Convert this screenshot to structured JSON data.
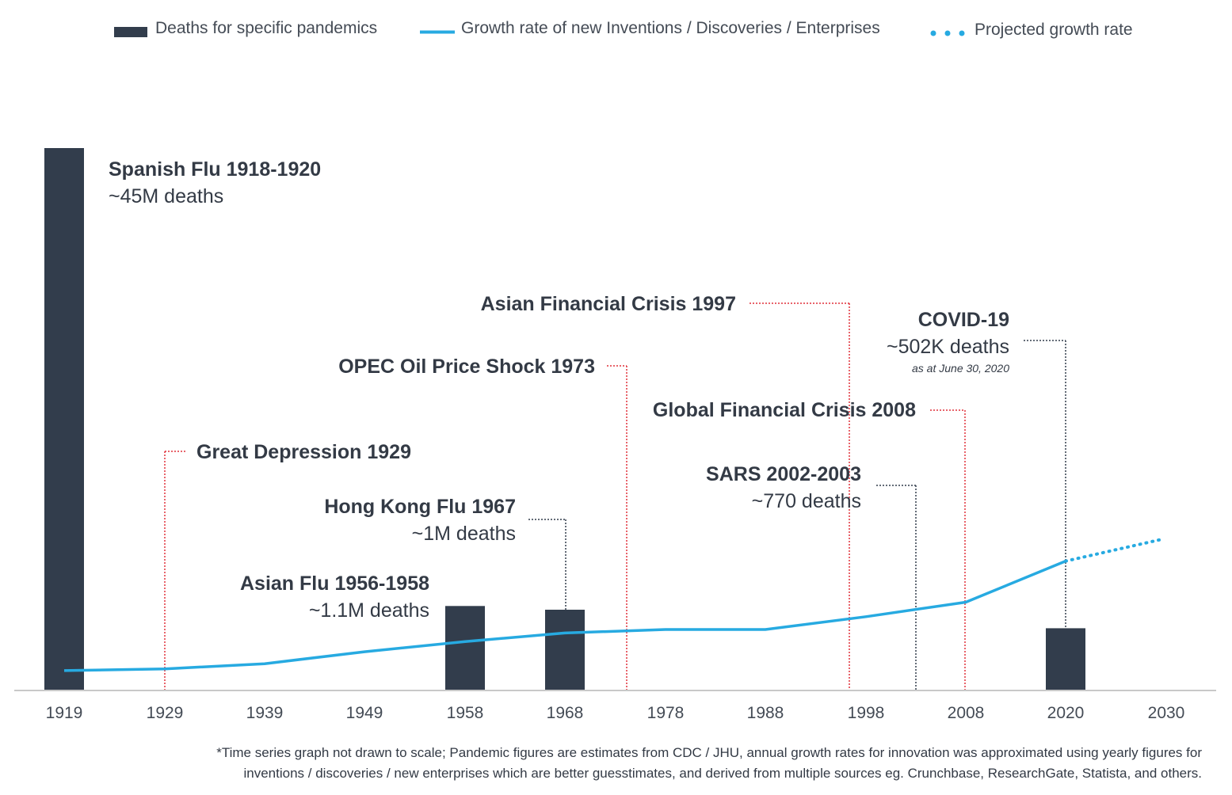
{
  "legend": {
    "deaths": "Deaths for specific pandemics",
    "growth": "Growth rate of new Inventions / Discoveries / Enterprises",
    "projected": "Projected growth rate"
  },
  "colors": {
    "bar": "#323d4c",
    "growth_line": "#27aae1",
    "economic_marker": "#e0303a",
    "pandemic_marker": "#323d4c",
    "axis": "#c8c8c8",
    "text": "#333a45"
  },
  "chart_data": {
    "type": "bar",
    "x_tick_labels": [
      "1919",
      "1929",
      "1939",
      "1949",
      "1958",
      "1968",
      "1978",
      "1988",
      "1998",
      "2008",
      "2020",
      "2030"
    ],
    "y_axis_shown": false,
    "pandemic_bars": [
      {
        "x": 1919,
        "label": "Spanish Flu 1918-1920",
        "sublabel": "~45M deaths",
        "deaths_millions": 45
      },
      {
        "x": 1958,
        "label": "Asian Flu 1956-1958",
        "sublabel": "~1.1M deaths",
        "deaths_millions": 1.1
      },
      {
        "x": 1968,
        "label": "Hong Kong Flu 1967",
        "sublabel": "~1M deaths",
        "deaths_millions": 1.0
      },
      {
        "x": 2020,
        "label": "COVID-19",
        "sublabel": "~502K deaths",
        "note": "as at June 30, 2020",
        "deaths_millions": 0.502
      }
    ],
    "other_pandemics": [
      {
        "x": 2003,
        "label": "SARS 2002-2003",
        "sublabel": "~770 deaths"
      }
    ],
    "economic_events": [
      {
        "x": 1929,
        "label": "Great Depression 1929"
      },
      {
        "x": 1973,
        "label": "OPEC Oil Price Shock 1973"
      },
      {
        "x": 1997,
        "label": "Asian Financial Crisis 1997"
      },
      {
        "x": 2008,
        "label": "Global Financial Crisis 2008"
      }
    ],
    "series": [
      {
        "name": "Growth rate of new Inventions / Discoveries / Enterprises",
        "style": "solid",
        "x": [
          1919,
          1929,
          1939,
          1949,
          1958,
          1968,
          1978,
          1988,
          1998,
          2008,
          2020
        ],
        "values": [
          1.4,
          1.6,
          2.2,
          3.6,
          4.8,
          5.8,
          6.2,
          6.2,
          7.7,
          9.4,
          14.2
        ]
      },
      {
        "name": "Projected growth rate",
        "style": "dotted",
        "x": [
          2020,
          2030
        ],
        "values": [
          14.2,
          16.7
        ]
      }
    ]
  },
  "footnote": {
    "line1": "*Time series graph not drawn to scale; Pandemic figures are estimates from CDC / JHU, annual growth rates for innovation was approximated using yearly figures for",
    "line2": "inventions / discoveries / new enterprises which are better guesstimates, and derived from multiple sources eg. Crunchbase, ResearchGate, Statista, and others."
  }
}
